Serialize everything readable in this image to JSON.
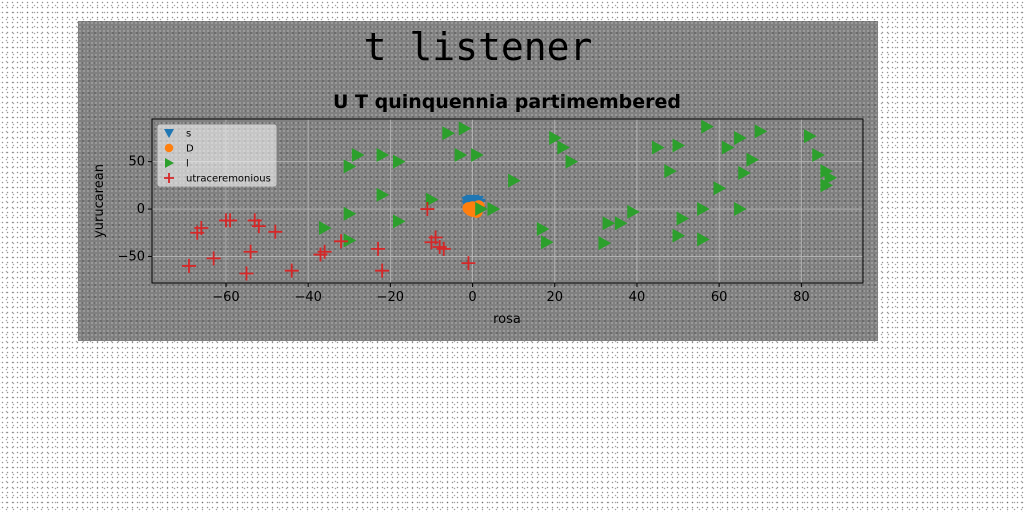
{
  "chart_data": {
    "type": "scatter",
    "suptitle": "t listener",
    "title": "U T quinquennia partimembered",
    "xlabel": "rosa",
    "ylabel": "yurucarean",
    "xlim": [
      -78,
      95
    ],
    "ylim": [
      -78,
      95
    ],
    "xticks": [
      -60,
      -40,
      -20,
      0,
      20,
      40,
      60,
      80
    ],
    "yticks": [
      -50,
      0,
      50
    ],
    "grid": true,
    "legend_position": "top-left",
    "series": [
      {
        "name": "s",
        "marker": "triangle-down",
        "color": "#1f77b4",
        "points": [
          [
            0,
            9
          ],
          [
            1,
            8
          ],
          [
            -1,
            7
          ],
          [
            0.5,
            6
          ],
          [
            -0.5,
            8
          ],
          [
            1.5,
            5
          ],
          [
            0,
            4
          ],
          [
            -1,
            3
          ]
        ]
      },
      {
        "name": "D",
        "marker": "circle",
        "color": "#ff7f0e",
        "points": [
          [
            0,
            2
          ],
          [
            -0.5,
            -1
          ],
          [
            0.5,
            0
          ],
          [
            1,
            -3
          ],
          [
            -1,
            1
          ],
          [
            0,
            -2
          ],
          [
            1.5,
            3
          ],
          [
            0,
            0
          ]
        ]
      },
      {
        "name": "l",
        "marker": "triangle-right",
        "color": "#2ca02c",
        "points": [
          [
            -6,
            80
          ],
          [
            -2,
            85
          ],
          [
            -30,
            45
          ],
          [
            -28,
            57
          ],
          [
            -22,
            57
          ],
          [
            -18,
            50
          ],
          [
            -3,
            57
          ],
          [
            1,
            57
          ],
          [
            10,
            30
          ],
          [
            -22,
            15
          ],
          [
            -10,
            10
          ],
          [
            -30,
            -5
          ],
          [
            -18,
            -13
          ],
          [
            -36,
            -20
          ],
          [
            -30,
            -33
          ],
          [
            2,
            0
          ],
          [
            5,
            0
          ],
          [
            20,
            75
          ],
          [
            22,
            65
          ],
          [
            24,
            50
          ],
          [
            45,
            65
          ],
          [
            48,
            40
          ],
          [
            50,
            67
          ],
          [
            57,
            87
          ],
          [
            62,
            65
          ],
          [
            65,
            75
          ],
          [
            66,
            38
          ],
          [
            70,
            82
          ],
          [
            68,
            52
          ],
          [
            60,
            22
          ],
          [
            65,
            0
          ],
          [
            56,
            0
          ],
          [
            51,
            -10
          ],
          [
            39,
            -3
          ],
          [
            36,
            -15
          ],
          [
            33,
            -15
          ],
          [
            32,
            -36
          ],
          [
            17,
            -21
          ],
          [
            18,
            -35
          ],
          [
            50,
            -28
          ],
          [
            56,
            -32
          ],
          [
            82,
            77
          ],
          [
            84,
            57
          ],
          [
            86,
            40
          ],
          [
            87,
            33
          ],
          [
            86,
            25
          ]
        ]
      },
      {
        "name": "utraceremonious",
        "marker": "plus",
        "color": "#d62728",
        "points": [
          [
            -69,
            -60
          ],
          [
            -67,
            -25
          ],
          [
            -66,
            -20
          ],
          [
            -63,
            -52
          ],
          [
            -60,
            -12
          ],
          [
            -59,
            -12
          ],
          [
            -55,
            -68
          ],
          [
            -54,
            -45
          ],
          [
            -53,
            -12
          ],
          [
            -52,
            -18
          ],
          [
            -48,
            -24
          ],
          [
            -44,
            -65
          ],
          [
            -37,
            -48
          ],
          [
            -36,
            -45
          ],
          [
            -32,
            -34
          ],
          [
            -23,
            -42
          ],
          [
            -22,
            -65
          ],
          [
            -11,
            0
          ],
          [
            -10,
            -35
          ],
          [
            -9,
            -30
          ],
          [
            -8,
            -40
          ],
          [
            -7,
            -42
          ],
          [
            -1,
            -57
          ]
        ]
      }
    ]
  }
}
